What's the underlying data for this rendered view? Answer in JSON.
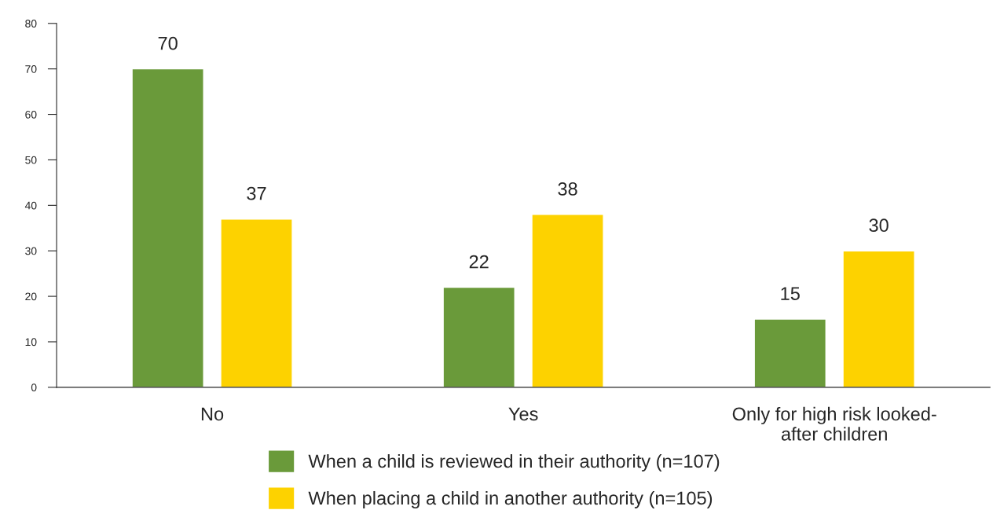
{
  "chart_data": {
    "type": "bar",
    "categories": [
      "No",
      "Yes",
      "Only for high risk looked-\nafter children"
    ],
    "series": [
      {
        "name": "When a child is reviewed in their authority (n=107)",
        "color": "#6a9a3a",
        "values": [
          70,
          22,
          15
        ]
      },
      {
        "name": "When placing a child in another authority (n=105)",
        "color": "#fdd200",
        "values": [
          37,
          38,
          30
        ]
      }
    ],
    "ylim": [
      0,
      80
    ],
    "yticks": [
      0,
      10,
      20,
      30,
      40,
      50,
      60,
      70,
      80
    ],
    "data_labels": true,
    "grid": false,
    "legend": "bottom"
  }
}
